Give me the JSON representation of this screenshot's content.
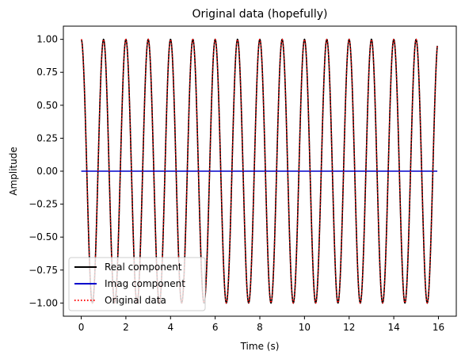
{
  "chart_data": {
    "type": "line",
    "title": "Original data (hopefully)",
    "xlabel": "Time (s)",
    "ylabel": "Amplitude",
    "xlim": [
      -0.8,
      16.8
    ],
    "ylim": [
      -1.1,
      1.1
    ],
    "x_ticks": [
      0,
      2,
      4,
      6,
      8,
      10,
      12,
      14,
      16
    ],
    "y_ticks": [
      1.0,
      0.75,
      0.5,
      0.25,
      0.0,
      -0.25,
      -0.5,
      -0.75,
      -1.0
    ],
    "x_tick_labels": [
      "0",
      "2",
      "4",
      "6",
      "8",
      "10",
      "12",
      "14",
      "16"
    ],
    "y_tick_labels": [
      "1.00",
      "0.75",
      "0.50",
      "0.25",
      "0.00",
      "−0.25",
      "−0.50",
      "−0.75",
      "−1.00"
    ],
    "grid": false,
    "legend_position": "bottom-left",
    "t_start": 0,
    "t_end": 15.95,
    "frequency_hz": 1.0,
    "series": [
      {
        "name": "Real component",
        "color": "#000000",
        "style": "solid",
        "function": "cos"
      },
      {
        "name": "Imag component",
        "color": "#0000cc",
        "style": "solid",
        "function": "zero"
      },
      {
        "name": "Original data",
        "color": "#ff0000",
        "style": "dotted",
        "function": "cos"
      }
    ]
  }
}
